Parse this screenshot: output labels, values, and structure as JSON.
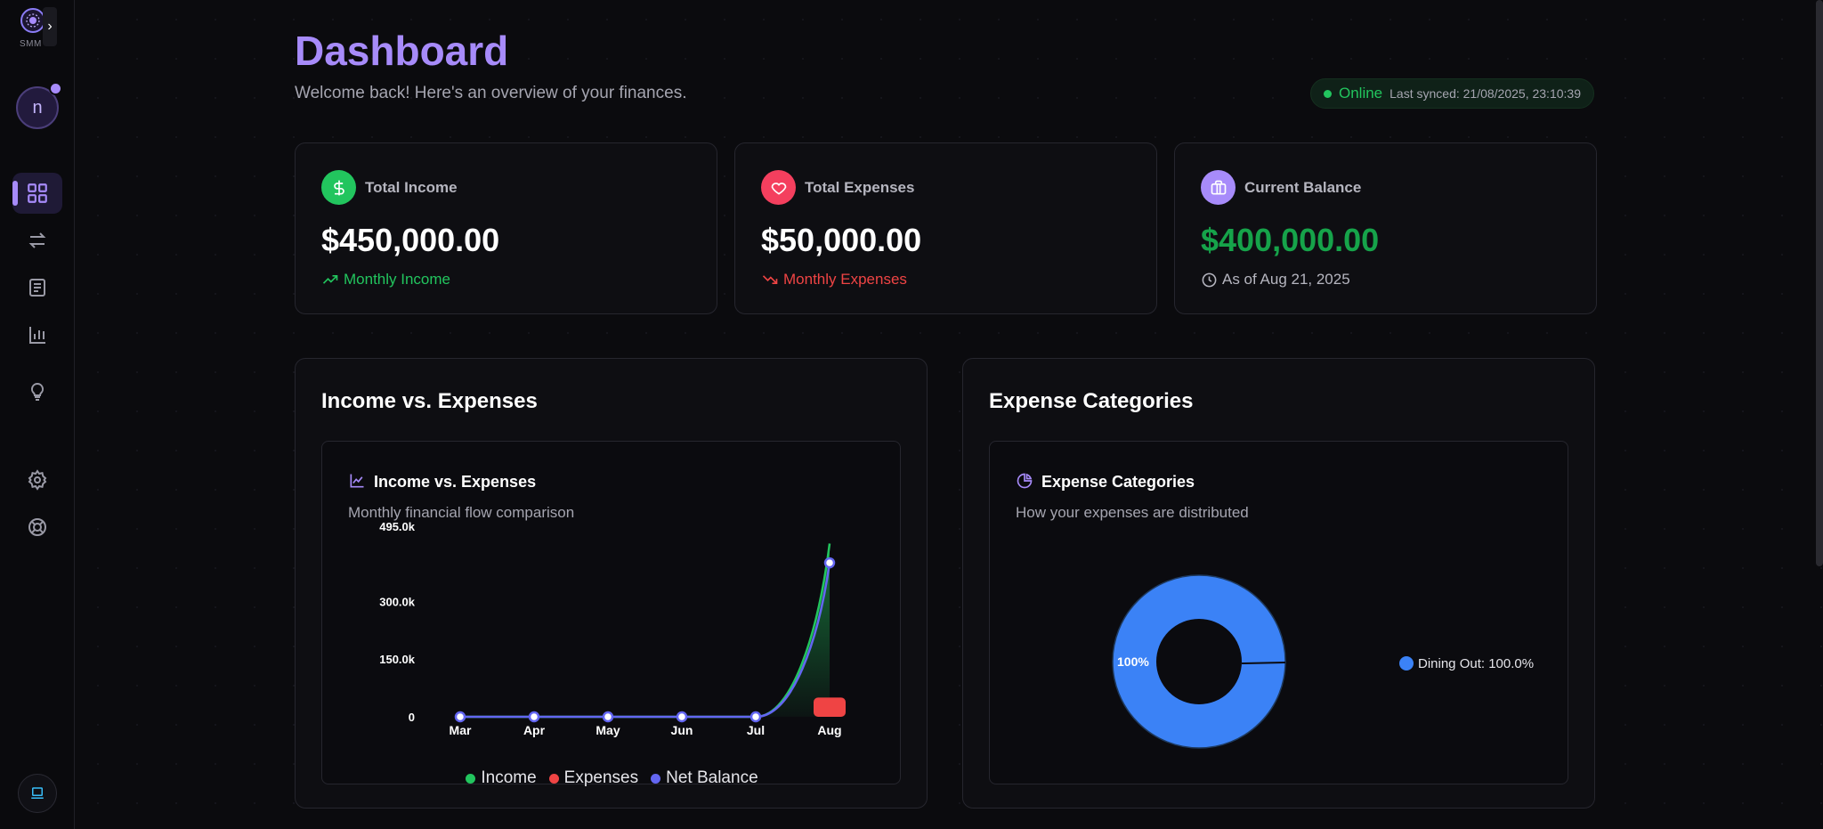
{
  "app": {
    "logo_label": "SMM",
    "avatar_initial": "n"
  },
  "sidebar": {
    "items": [
      {
        "name": "dashboard",
        "icon": "grid-icon",
        "active": true
      },
      {
        "name": "transactions",
        "icon": "arrows-swap-icon"
      },
      {
        "name": "reports",
        "icon": "list-document-icon"
      },
      {
        "name": "analytics",
        "icon": "bar-chart-icon"
      },
      {
        "name": "insights",
        "icon": "lightbulb-icon"
      },
      {
        "name": "settings",
        "icon": "gear-icon"
      },
      {
        "name": "help",
        "icon": "lifebuoy-icon"
      }
    ]
  },
  "header": {
    "title": "Dashboard",
    "subtitle": "Welcome back! Here's an overview of your finances.",
    "status": "Online",
    "last_synced": "Last synced: 21/08/2025, 23:10:39"
  },
  "stats": {
    "income": {
      "label": "Total Income",
      "value": "$450,000.00",
      "sub": "Monthly Income",
      "color": "#22c55e"
    },
    "expenses": {
      "label": "Total Expenses",
      "value": "$50,000.00",
      "sub": "Monthly Expenses",
      "color": "#f43f5e"
    },
    "balance": {
      "label": "Current Balance",
      "value": "$400,000.00",
      "sub": "As of Aug 21, 2025",
      "color": "#a78bfa"
    }
  },
  "income_panel": {
    "title": "Income vs. Expenses",
    "inner_title": "Income vs. Expenses",
    "inner_sub": "Monthly financial flow comparison"
  },
  "expense_panel": {
    "title": "Expense Categories",
    "inner_title": "Expense Categories",
    "inner_sub": "How your expenses are distributed"
  },
  "chart_data": [
    {
      "type": "line",
      "categories": [
        "Mar",
        "Apr",
        "May",
        "Jun",
        "Jul",
        "Aug"
      ],
      "y_ticks": [
        "0",
        "150.0k",
        "300.0k",
        "495.0k"
      ],
      "ylim": [
        0,
        495000
      ],
      "series": [
        {
          "name": "Income",
          "values": [
            0,
            0,
            0,
            0,
            0,
            450000
          ],
          "color": "#22c55e"
        },
        {
          "name": "Expenses",
          "values": [
            0,
            0,
            0,
            0,
            0,
            50000
          ],
          "color": "#ef4444",
          "kind": "bar"
        },
        {
          "name": "Net Balance",
          "values": [
            0,
            0,
            0,
            0,
            0,
            400000
          ],
          "color": "#6366f1"
        }
      ],
      "legend": "bottom"
    },
    {
      "type": "pie",
      "donut": true,
      "slices": [
        {
          "label": "Dining Out",
          "value": 100.0,
          "color": "#3b82f6"
        }
      ],
      "slice_label": "100%",
      "legend_text": "Dining Out: 100.0%",
      "legend": "right"
    }
  ]
}
